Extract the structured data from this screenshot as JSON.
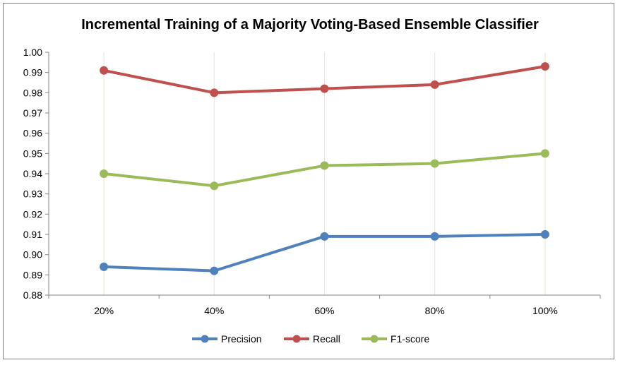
{
  "chart_data": {
    "type": "line",
    "title": "Incremental Training of a Majority Voting-Based Ensemble Classifier",
    "categories": [
      "20%",
      "40%",
      "60%",
      "80%",
      "100%"
    ],
    "y_ticks": [
      "0.88",
      "0.89",
      "0.90",
      "0.91",
      "0.92",
      "0.93",
      "0.94",
      "0.95",
      "0.96",
      "0.97",
      "0.98",
      "0.99",
      "1.00"
    ],
    "ylim": [
      0.88,
      1.0
    ],
    "grid": "vertical",
    "legend": "bottom",
    "series": [
      {
        "name": "Precision",
        "color": "#4f81bd",
        "values": [
          0.894,
          0.892,
          0.909,
          0.909,
          0.91
        ]
      },
      {
        "name": "Recall",
        "color": "#c0504d",
        "values": [
          0.991,
          0.98,
          0.982,
          0.984,
          0.993
        ]
      },
      {
        "name": "F1-score",
        "color": "#9bbb59",
        "values": [
          0.94,
          0.934,
          0.944,
          0.945,
          0.95
        ]
      }
    ]
  }
}
